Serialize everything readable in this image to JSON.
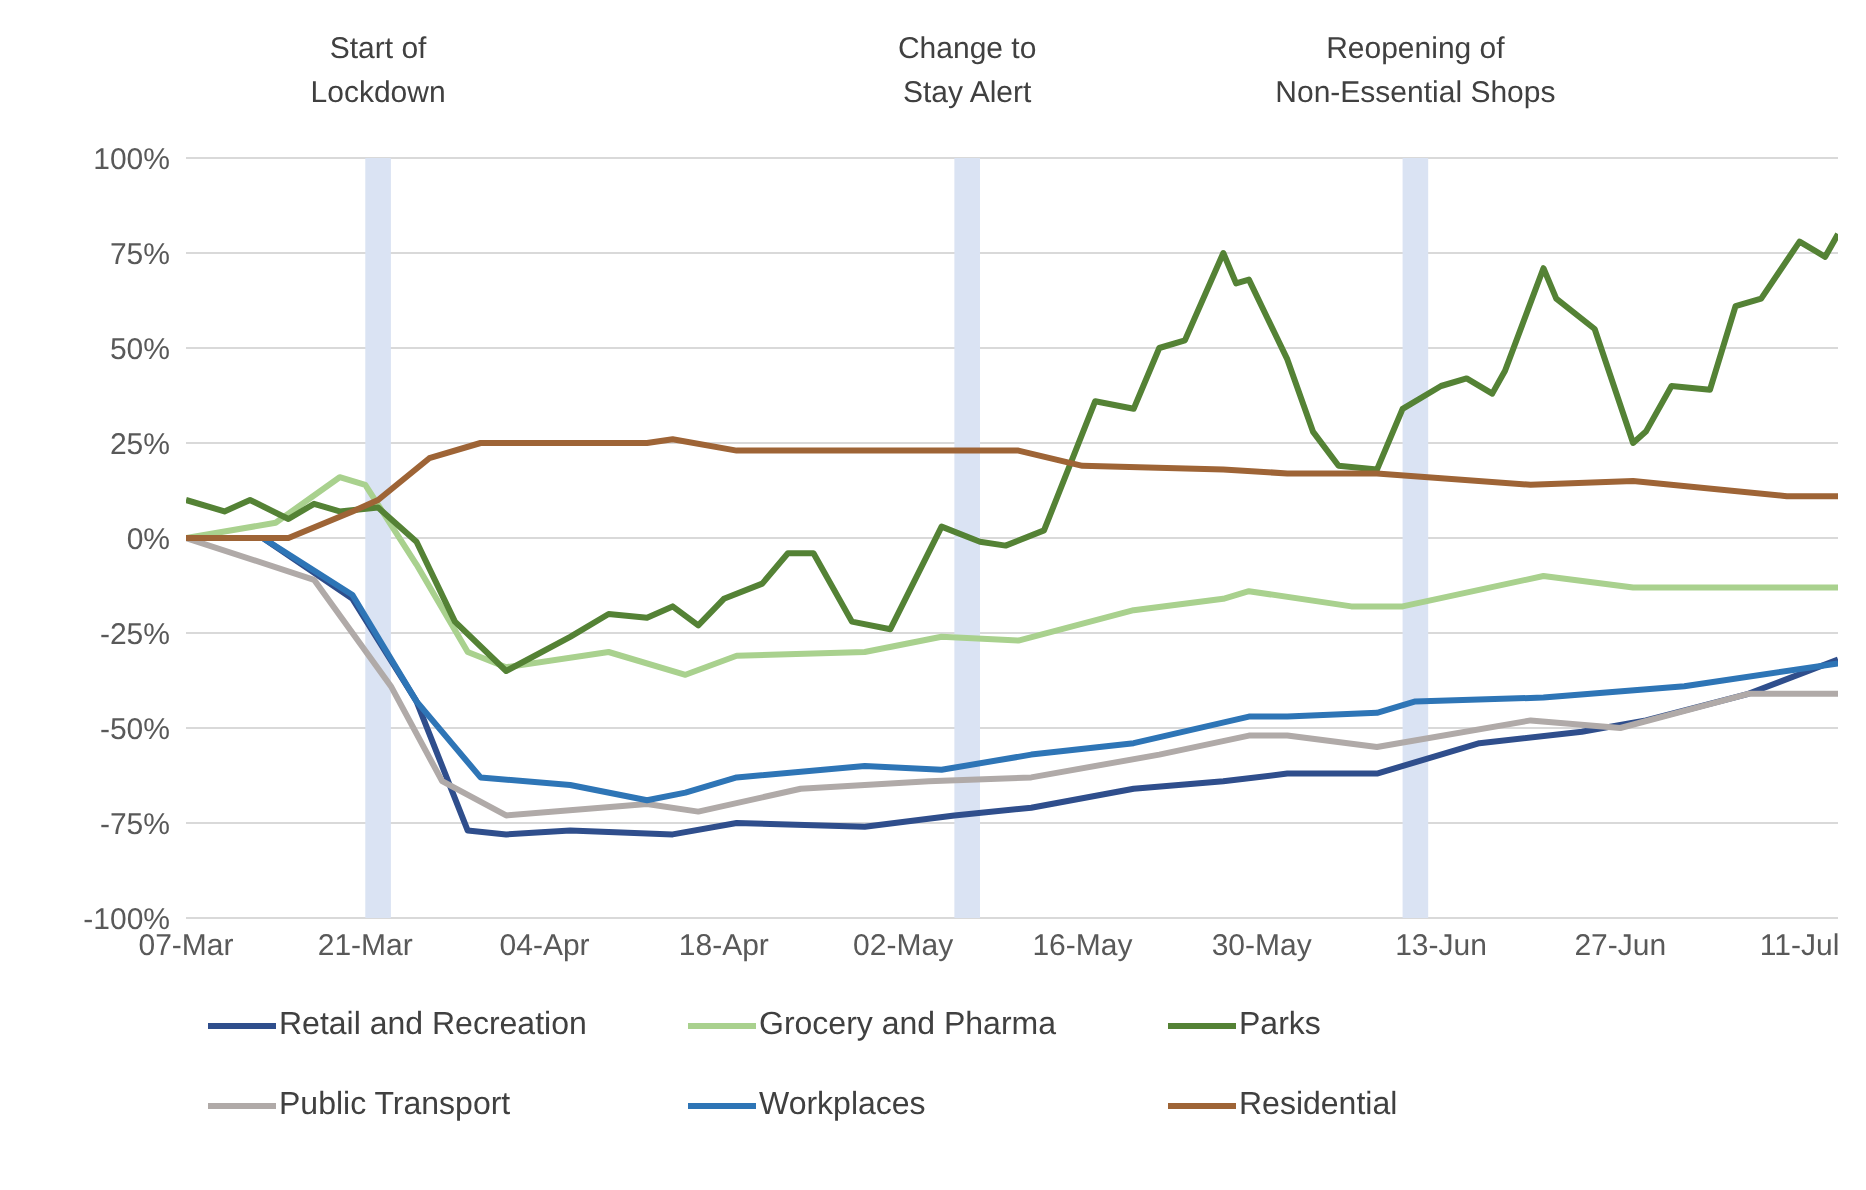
{
  "chart_data": {
    "type": "line",
    "xlim": [
      "--03-07",
      "--07-14"
    ],
    "xticks": [
      {
        "value": "--03-07",
        "label": "07-Mar"
      },
      {
        "value": "--03-21",
        "label": "21-Mar"
      },
      {
        "value": "--04-04",
        "label": "04-Apr"
      },
      {
        "value": "--04-18",
        "label": "18-Apr"
      },
      {
        "value": "--05-02",
        "label": "02-May"
      },
      {
        "value": "--05-16",
        "label": "16-May"
      },
      {
        "value": "--05-30",
        "label": "30-May"
      },
      {
        "value": "--06-13",
        "label": "13-Jun"
      },
      {
        "value": "--06-27",
        "label": "27-Jun"
      },
      {
        "value": "--07-11",
        "label": "11-Jul"
      }
    ],
    "ylim": [
      -100,
      100
    ],
    "yticks": [
      {
        "value": -100,
        "label": "-100%"
      },
      {
        "value": -75,
        "label": "-75%"
      },
      {
        "value": -50,
        "label": "-50%"
      },
      {
        "value": -25,
        "label": "-25%"
      },
      {
        "value": 0,
        "label": "0%"
      },
      {
        "value": 25,
        "label": "25%"
      },
      {
        "value": 50,
        "label": "50%"
      },
      {
        "value": 75,
        "label": "75%"
      },
      {
        "value": 100,
        "label": "100%"
      }
    ],
    "grid": "y",
    "legend": "bottom",
    "marker": "none",
    "line_style": "solid",
    "bands": [
      {
        "axis": "x",
        "from": "--03-21",
        "to": "--03-23",
        "label": "Start of Lockdown",
        "color": "#dae3f3"
      },
      {
        "axis": "x",
        "from": "--05-06",
        "to": "--05-08",
        "label": "Change to Stay Alert",
        "color": "#dae3f3"
      },
      {
        "axis": "x",
        "from": "--06-10",
        "to": "--06-12",
        "label": "Reopening of Non-Essential Shops",
        "color": "#dae3f3"
      }
    ],
    "series": [
      {
        "name": "Retail and Recreation",
        "color": "#2f4e8c",
        "x": [
          "--03-07",
          "--03-13",
          "--03-20",
          "--03-25",
          "--03-29",
          "--04-01",
          "--04-06",
          "--04-14",
          "--04-19",
          "--04-29",
          "--05-06",
          "--05-12",
          "--05-20",
          "--05-27",
          "--06-01",
          "--06-08",
          "--06-16",
          "--06-24",
          "--06-29",
          "--07-07",
          "--07-14"
        ],
        "values": [
          0,
          0,
          -16,
          -43,
          -77,
          -78,
          -77,
          -78,
          -75,
          -76,
          -73,
          -71,
          -66,
          -64,
          -62,
          -62,
          -54,
          -51,
          -48,
          -41,
          -32
        ]
      },
      {
        "name": "Grocery and Pharma",
        "color": "#a9d18e",
        "x": [
          "--03-07",
          "--03-14",
          "--03-19",
          "--03-21",
          "--03-25",
          "--03-29",
          "--04-01",
          "--04-09",
          "--04-15",
          "--04-19",
          "--04-29",
          "--05-05",
          "--05-11",
          "--05-20",
          "--05-27",
          "--05-29",
          "--06-06",
          "--06-10",
          "--06-21",
          "--06-28",
          "--07-14"
        ],
        "values": [
          0,
          4,
          16,
          14,
          -7,
          -30,
          -34,
          -30,
          -36,
          -31,
          -30,
          -26,
          -27,
          -19,
          -16,
          -14,
          -18,
          -18,
          -10,
          -13,
          -13
        ]
      },
      {
        "name": "Parks",
        "color": "#548235",
        "x": [
          "--03-07",
          "--03-10",
          "--03-12",
          "--03-15",
          "--03-17",
          "--03-19",
          "--03-22",
          "--03-25",
          "--03-28",
          "--04-01",
          "--04-06",
          "--04-09",
          "--04-12",
          "--04-14",
          "--04-16",
          "--04-18",
          "--04-21",
          "--04-23",
          "--04-25",
          "--04-28",
          "--05-01",
          "--05-05",
          "--05-08",
          "--05-10",
          "--05-13",
          "--05-17",
          "--05-20",
          "--05-22",
          "--05-24",
          "--05-27",
          "--05-28",
          "--05-29",
          "--06-01",
          "--06-03",
          "--06-05",
          "--06-08",
          "--06-10",
          "--06-13",
          "--06-15",
          "--06-17",
          "--06-18",
          "--06-21",
          "--06-22",
          "--06-25",
          "--06-28",
          "--06-29",
          "--07-01",
          "--07-04",
          "--07-06",
          "--07-08",
          "--07-11",
          "--07-13",
          "--07-14"
        ],
        "values": [
          10,
          7,
          10,
          5,
          9,
          7,
          8,
          -1,
          -22,
          -35,
          -26,
          -20,
          -21,
          -18,
          -23,
          -16,
          -12,
          -4,
          -4,
          -22,
          -24,
          3,
          -1,
          -2,
          2,
          36,
          34,
          50,
          52,
          75,
          67,
          68,
          47,
          28,
          19,
          18,
          34,
          40,
          42,
          38,
          44,
          71,
          63,
          55,
          25,
          28,
          40,
          39,
          61,
          63,
          78,
          74,
          80
        ]
      },
      {
        "name": "Public Transport",
        "color": "#b0aaa8",
        "x": [
          "--03-07",
          "--03-17",
          "--03-23",
          "--03-27",
          "--04-01",
          "--04-12",
          "--04-16",
          "--04-24",
          "--05-04",
          "--05-12",
          "--05-22",
          "--05-29",
          "--06-01",
          "--06-08",
          "--06-20",
          "--06-27",
          "--07-07",
          "--07-14"
        ],
        "values": [
          0,
          -11,
          -39,
          -64,
          -73,
          -70,
          -72,
          -66,
          -64,
          -63,
          -57,
          -52,
          -52,
          -55,
          -48,
          -50,
          -41,
          -41
        ]
      },
      {
        "name": "Workplaces",
        "color": "#2e75b6",
        "x": [
          "--03-07",
          "--03-13",
          "--03-20",
          "--03-25",
          "--03-30",
          "--04-06",
          "--04-12",
          "--04-15",
          "--04-19",
          "--04-29",
          "--05-05",
          "--05-12",
          "--05-20",
          "--05-29",
          "--06-01",
          "--06-08",
          "--06-11",
          "--06-21",
          "--07-02",
          "--07-14"
        ],
        "values": [
          0,
          0,
          -15,
          -43,
          -63,
          -65,
          -69,
          -67,
          -63,
          -60,
          -61,
          -57,
          -54,
          -47,
          -47,
          -46,
          -43,
          -42,
          -39,
          -33
        ]
      },
      {
        "name": "Residential",
        "color": "#9e6436",
        "x": [
          "--03-07",
          "--03-15",
          "--03-20",
          "--03-22",
          "--03-26",
          "--03-30",
          "--04-12",
          "--04-14",
          "--04-19",
          "--05-11",
          "--05-16",
          "--05-27",
          "--06-01",
          "--06-08",
          "--06-20",
          "--06-28",
          "--07-10",
          "--07-14"
        ],
        "values": [
          0,
          0,
          7,
          10,
          21,
          25,
          25,
          26,
          23,
          23,
          19,
          18,
          17,
          17,
          14,
          15,
          11,
          11
        ]
      }
    ]
  }
}
